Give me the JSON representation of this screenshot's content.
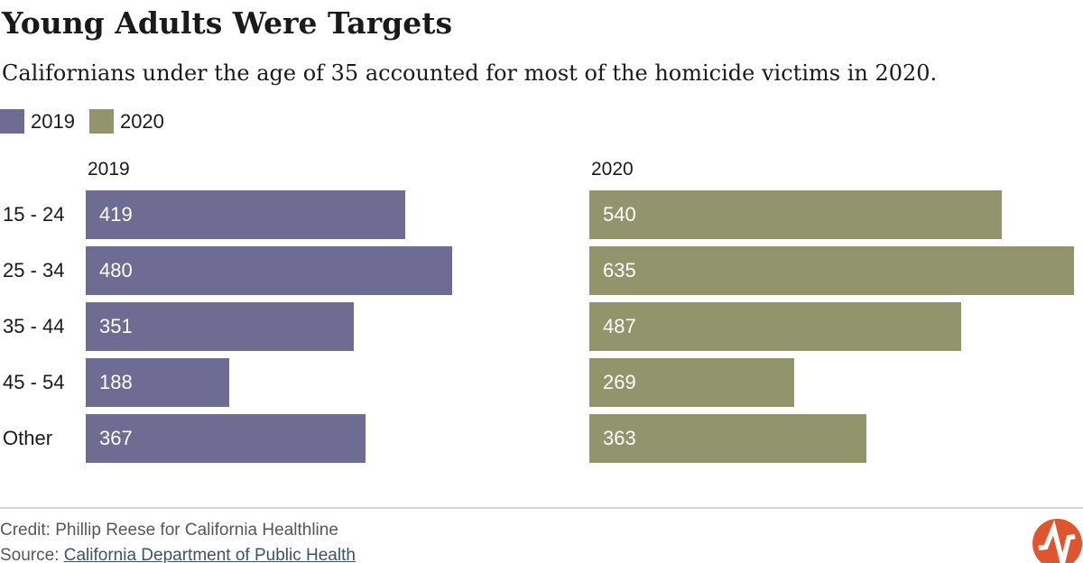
{
  "header": {
    "title": "Young Adults Were Targets",
    "subtitle": "Californians under the age of 35 accounted for most of the homicide victims in 2020."
  },
  "legend": {
    "items": [
      {
        "label": "2019",
        "color": "#6e6c93"
      },
      {
        "label": "2020",
        "color": "#92956c"
      }
    ]
  },
  "chart_data": {
    "type": "bar",
    "orientation": "horizontal",
    "title": "Young Adults Were Targets",
    "subtitle": "Californians under the age of 35 accounted for most of the homicide victims in 2020.",
    "categories": [
      "15 - 24",
      "25 - 34",
      "35 - 44",
      "45 - 54",
      "Other"
    ],
    "series": [
      {
        "name": "2019",
        "color": "#6e6c93",
        "values": [
          419,
          480,
          351,
          188,
          367
        ]
      },
      {
        "name": "2020",
        "color": "#92956c",
        "values": [
          540,
          635,
          487,
          269,
          363
        ]
      }
    ],
    "panel_headers": [
      "2019",
      "2020"
    ],
    "xmax": 635,
    "value_labels_position": "inside-left",
    "value_label_color": "#ffffff",
    "grid": false,
    "legend_position": "top-left"
  },
  "footer": {
    "credit": "Credit: Phillip Reese for California Healthline",
    "source_label": "Source:",
    "source_link": "California Department of Public Health",
    "divider_color": "#d5d5d5",
    "logo_color": "#e0552d"
  }
}
